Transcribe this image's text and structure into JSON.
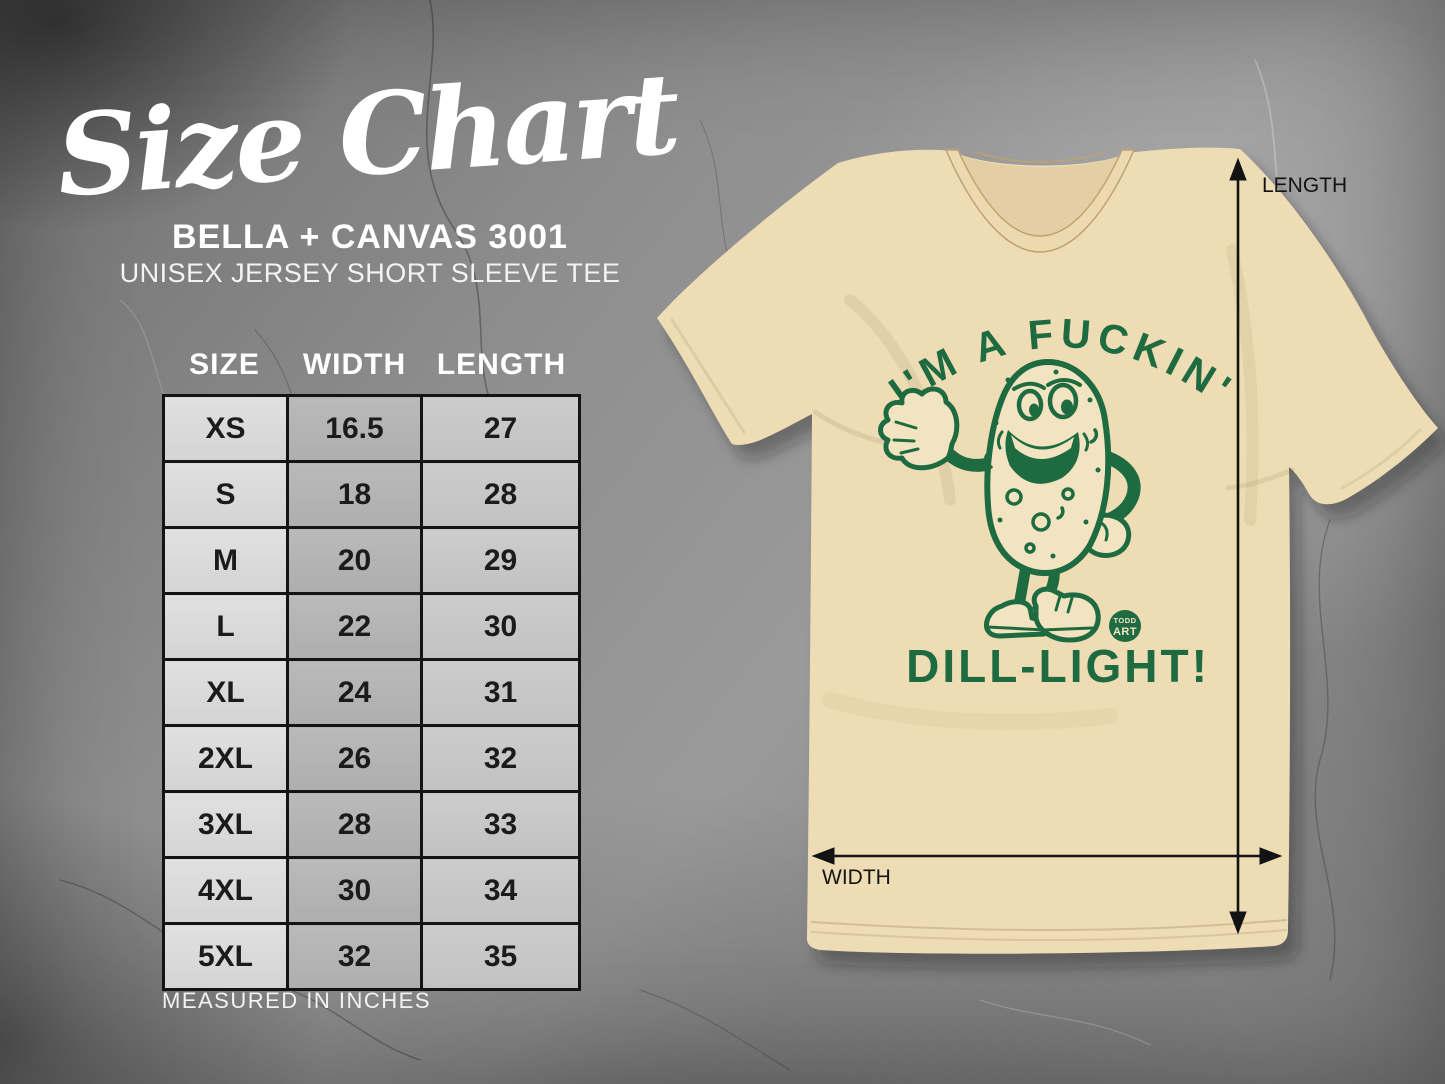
{
  "header": {
    "title": "Size Chart",
    "brand": "BELLA + CANVAS 3001",
    "product": "UNISEX JERSEY SHORT SLEEVE TEE"
  },
  "size_table": {
    "headers": [
      "SIZE",
      "WIDTH",
      "LENGTH"
    ],
    "rows": [
      [
        "XS",
        "16.5",
        "27"
      ],
      [
        "S",
        "18",
        "28"
      ],
      [
        "M",
        "20",
        "29"
      ],
      [
        "L",
        "22",
        "30"
      ],
      [
        "XL",
        "24",
        "31"
      ],
      [
        "2XL",
        "26",
        "32"
      ],
      [
        "3XL",
        "28",
        "33"
      ],
      [
        "4XL",
        "30",
        "34"
      ],
      [
        "5XL",
        "32",
        "35"
      ]
    ],
    "footnote": "MEASURED IN INCHES"
  },
  "shirt_design": {
    "arc_text": "I'M A FUCKIN'",
    "bottom_text": "DILL-LIGHT!",
    "badge_line1": "TODD",
    "badge_line2": "ART"
  },
  "measurements": {
    "length_label": "LENGTH",
    "width_label": "WIDTH"
  },
  "colors": {
    "design_green": "#1f6b41",
    "tee_tan": "#eedcb4",
    "tee_shadow": "#e2cea2",
    "arrow_black": "#131313",
    "table_border": "#141414",
    "text_white": "#ffffff"
  },
  "chart_data": {
    "type": "table",
    "title": "Size Chart — BELLA + CANVAS 3001 Unisex Jersey Short Sleeve Tee",
    "columns": [
      "SIZE",
      "WIDTH",
      "LENGTH"
    ],
    "units": "inches",
    "rows": [
      [
        "XS",
        16.5,
        27
      ],
      [
        "S",
        18,
        28
      ],
      [
        "M",
        20,
        29
      ],
      [
        "L",
        22,
        30
      ],
      [
        "XL",
        24,
        31
      ],
      [
        "2XL",
        26,
        32
      ],
      [
        "3XL",
        28,
        33
      ],
      [
        "4XL",
        30,
        34
      ],
      [
        "5XL",
        32,
        35
      ]
    ]
  }
}
